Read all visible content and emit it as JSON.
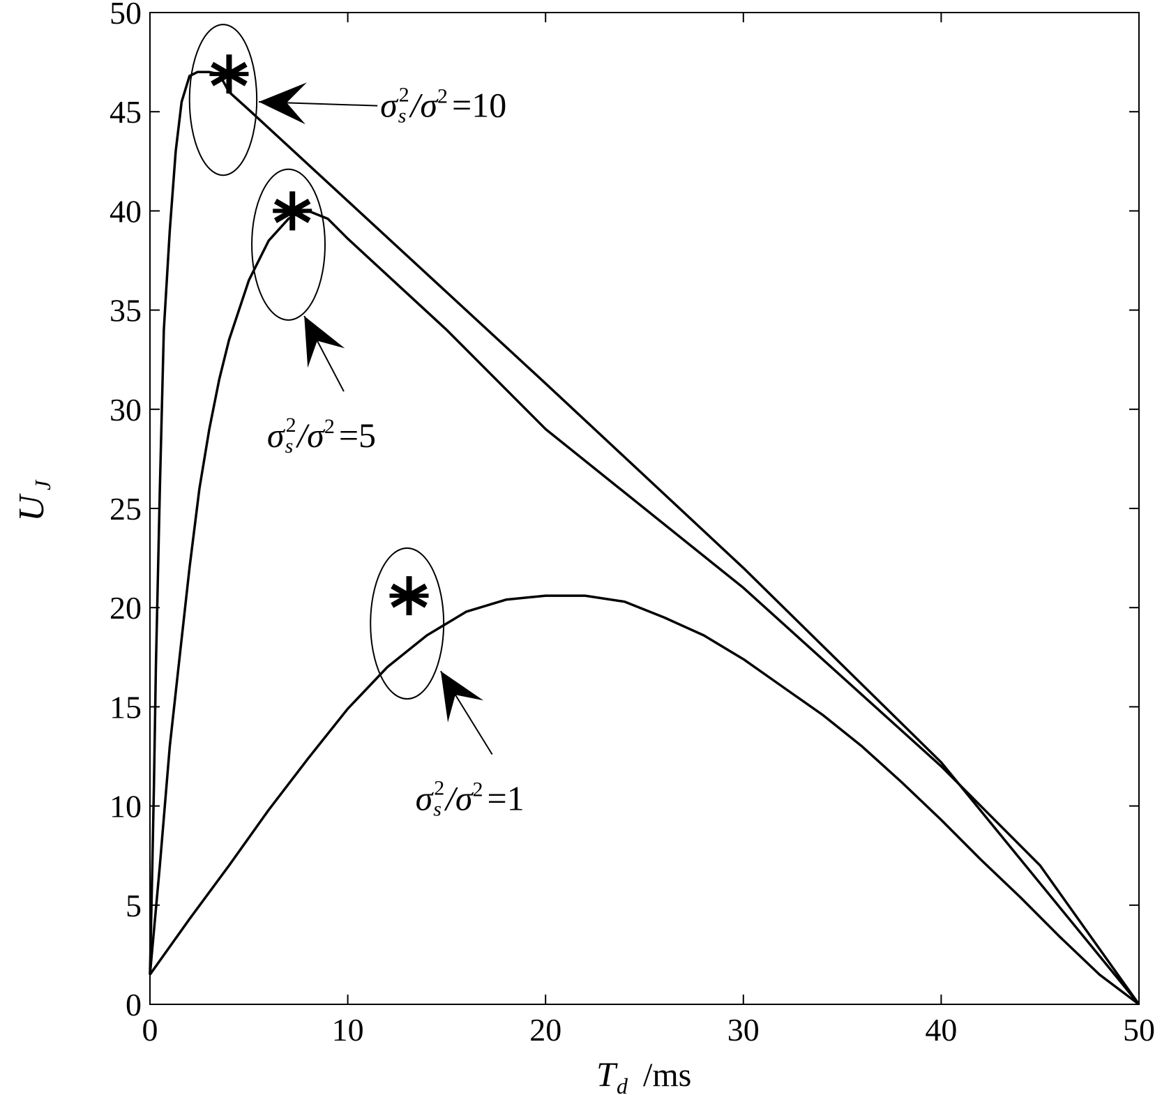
{
  "chart_data": {
    "type": "line",
    "title": "",
    "xlabel": "T_d /ms",
    "ylabel": "U_J",
    "xlim": [
      0,
      50
    ],
    "ylim": [
      0,
      50
    ],
    "xticks": [
      0,
      10,
      20,
      30,
      40,
      50
    ],
    "yticks": [
      0,
      5,
      10,
      15,
      20,
      25,
      30,
      35,
      40,
      45,
      50
    ],
    "grid": false,
    "legend": "none",
    "line_color": "#000000",
    "series": [
      {
        "x": [
          0,
          0.1,
          0.2,
          0.3,
          0.5,
          0.7,
          1.0,
          1.3,
          1.6,
          2.0,
          2.4,
          3.0,
          3.5,
          4.0,
          5,
          10,
          20,
          30,
          40,
          50
        ],
        "values": [
          1.5,
          6,
          11,
          17,
          26,
          34,
          39,
          43,
          45.5,
          46.8,
          47,
          47,
          46.9,
          46,
          45.1,
          40.5,
          31.3,
          22.0,
          12.2,
          0
        ]
      },
      {
        "x": [
          0,
          0.5,
          1,
          1.5,
          2,
          2.5,
          3,
          3.5,
          4,
          5,
          6,
          7,
          7.5,
          8,
          9,
          10,
          15,
          20,
          30,
          40,
          45,
          50
        ],
        "values": [
          1.5,
          7,
          13,
          17.5,
          22,
          26,
          29,
          31.5,
          33.5,
          36.5,
          38.5,
          39.6,
          39.9,
          40,
          39.6,
          38.6,
          34,
          29,
          21,
          12,
          7,
          0
        ]
      },
      {
        "x": [
          0,
          2,
          4,
          6,
          8,
          10,
          12,
          14,
          16,
          18,
          20,
          22,
          24,
          26,
          28,
          30,
          32,
          34,
          36,
          38,
          40,
          42,
          44,
          46,
          48,
          50
        ],
        "values": [
          1.5,
          4.3,
          7.0,
          9.8,
          12.4,
          14.9,
          17.0,
          18.6,
          19.8,
          20.4,
          20.6,
          20.6,
          20.3,
          19.5,
          18.6,
          17.4,
          16.0,
          14.6,
          13.0,
          11.2,
          9.3,
          7.3,
          5.4,
          3.4,
          1.5,
          0
        ]
      }
    ],
    "markers": [
      {
        "x": 4.0,
        "y": 46.9
      },
      {
        "x": 7.2,
        "y": 40.0
      },
      {
        "x": 13.1,
        "y": 20.6
      }
    ],
    "annotations": [
      {
        "sup_base": "σ",
        "sub": "s",
        "sup": "2",
        "rest": "/σ",
        "rest_sup": "2",
        "eq": "=10",
        "target": {
          "x": 5.5,
          "y": 45.5
        },
        "from": {
          "x": 11.5,
          "y": 45.3
        }
      },
      {
        "sup_base": "σ",
        "sub": "s",
        "sup": "2",
        "rest": "/σ",
        "rest_sup": "2",
        "eq": "=5",
        "target": {
          "x": 7.8,
          "y": 34.7
        },
        "from": {
          "x": 9.8,
          "y": 30.9
        }
      },
      {
        "sup_base": "σ",
        "sub": "s",
        "sup": "2",
        "rest": "/σ",
        "rest_sup": "2",
        "eq": "=1",
        "target": {
          "x": 14.7,
          "y": 16.8
        },
        "from": {
          "x": 17.3,
          "y": 12.6
        }
      }
    ],
    "highlight_ellipses": [
      {
        "cx": 3.7,
        "cy": 45.6,
        "rx": 1.7,
        "ry": 3.8
      },
      {
        "cx": 7.0,
        "cy": 38.3,
        "rx": 1.85,
        "ry": 3.8
      },
      {
        "cx": 13.0,
        "cy": 19.2,
        "rx": 1.85,
        "ry": 3.8
      }
    ]
  }
}
